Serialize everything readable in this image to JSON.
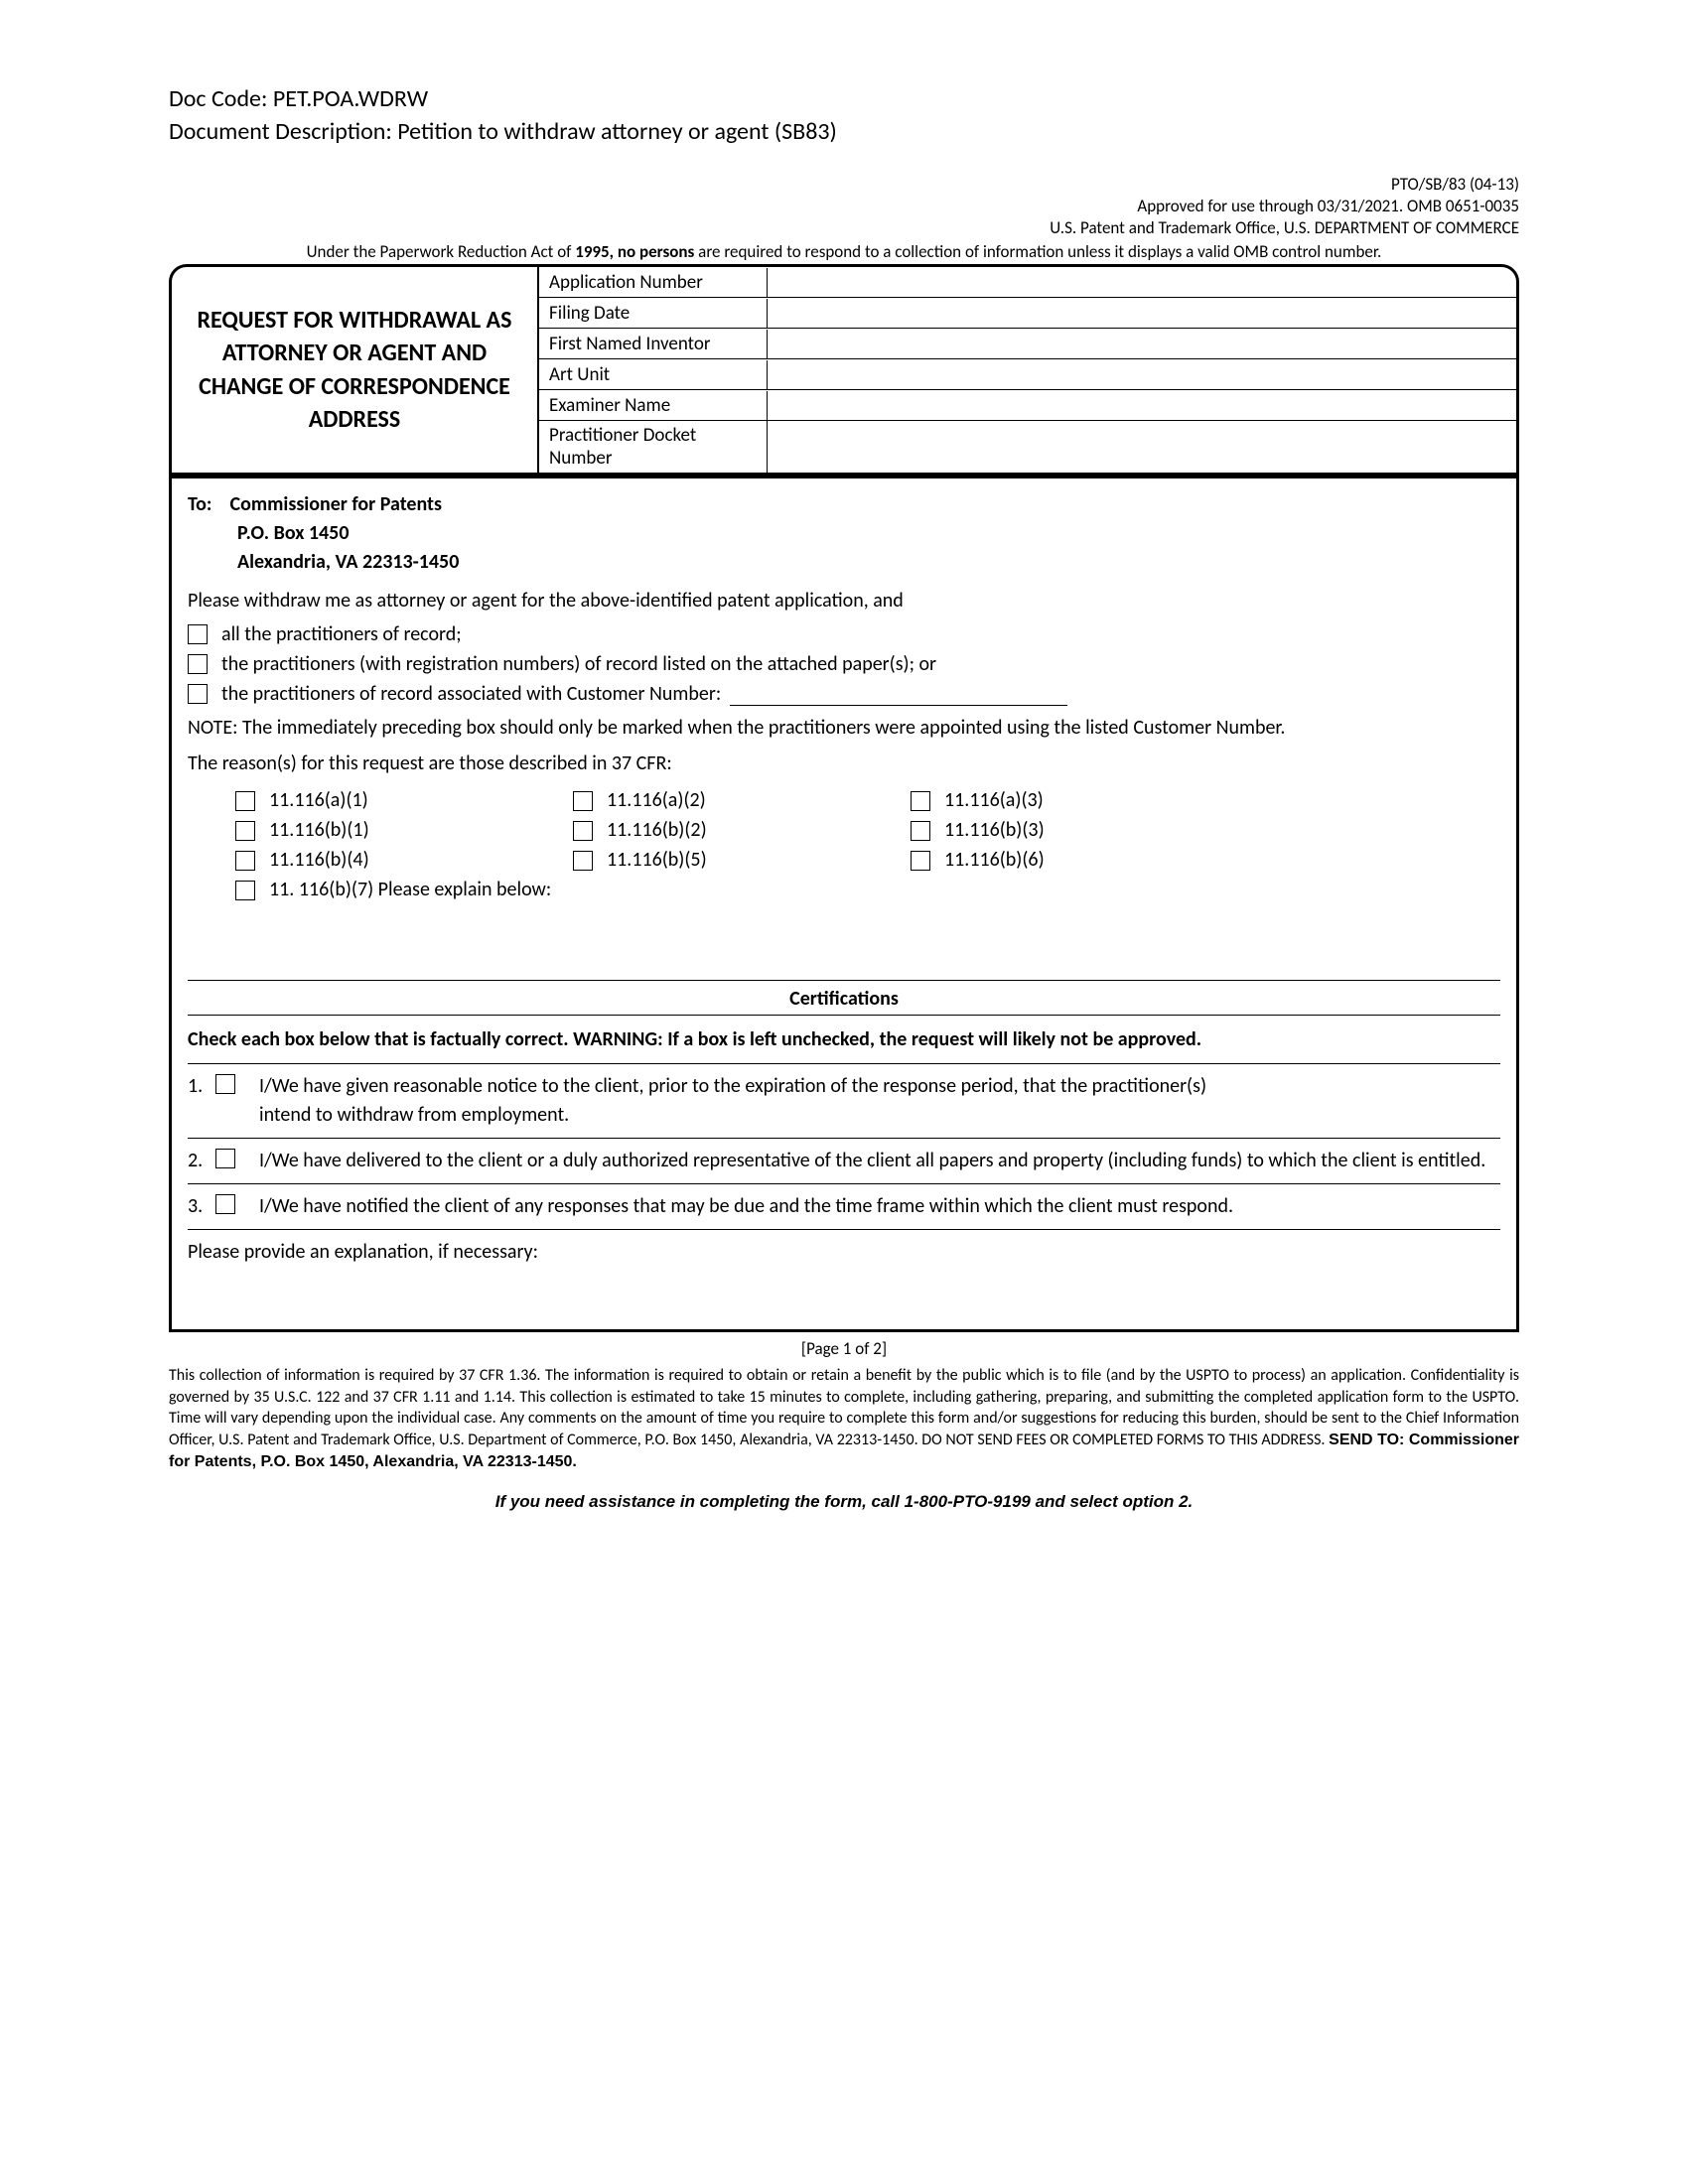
{
  "header": {
    "doc_code_label": "Doc Code:",
    "doc_code": "PET.POA.WDRW",
    "doc_desc_label": "Document Description:",
    "doc_desc": "Petition to withdraw attorney or agent (SB83)",
    "meta1": "PTO/SB/83 (04-13)",
    "meta2": "Approved for use through 03/31/2021. OMB 0651-0035",
    "meta3": "U.S. Patent and Trademark Office, U.S. DEPARTMENT OF COMMERCE",
    "meta4a": "Under the Paperwork Reduction Act of ",
    "meta4b": "1995, no persons",
    "meta4c": " are required to respond to a collection of information unless it displays a valid OMB control number."
  },
  "title": "REQUEST FOR WITHDRAWAL AS ATTORNEY OR AGENT AND CHANGE OF CORRESPONDENCE ADDRESS",
  "fields": {
    "app_num": "Application Number",
    "filing_date": "Filing Date",
    "inventor": "First Named Inventor",
    "art_unit": "Art Unit",
    "examiner": "Examiner Name",
    "docket": "Practitioner Docket Number"
  },
  "to": {
    "label": "To:",
    "line1": "Commissioner for Patents",
    "line2": "P.O. Box 1450",
    "line3": "Alexandria, VA  22313-1450"
  },
  "body": {
    "intro": "Please withdraw me as attorney or agent for the above-identified patent application, and",
    "opt1": "all the practitioners of record;",
    "opt2": "the practitioners (with registration numbers) of record listed on the attached paper(s); or",
    "opt3": "the practitioners of record associated with Customer Number:",
    "note": "NOTE:  The immediately preceding box should only be marked when the practitioners were appointed using the listed Customer Number.",
    "reasons_intro": "The reason(s) for this request are those described in 37 CFR:",
    "r1": "11.116(a)(1)",
    "r2": "11.116(a)(2)",
    "r3": "11.116(a)(3)",
    "r4": "11.116(b)(1)",
    "r5": "11.116(b)(2)",
    "r6": "11.116(b)(3)",
    "r7": "11.116(b)(4)",
    "r8": "11.116(b)(5)",
    "r9": "11.116(b)(6)",
    "r10": "11. 116(b)(7) Please explain below:"
  },
  "cert": {
    "heading": "Certifications",
    "warn": "Check each box below that is factually correct. WARNING:  If a box is left unchecked, the request will likely not be approved.",
    "n1": "1.",
    "c1a": "I/We have given reasonable notice to the client, prior to the expiration of the response period, that the practitioner(s)",
    "c1b": "intend to withdraw from employment.",
    "n2": "2.",
    "c2": "I/We have delivered to the client or a duly authorized representative of the client all papers and property (including funds) to which the client is entitled.",
    "n3": "3.",
    "c3": "I/We have notified the client of any responses that may be due and the time frame within which the client must respond.",
    "explain": "Please provide an explanation, if necessary:"
  },
  "footer": {
    "page": "[Page 1 of 2]",
    "text1": "This collection of information is required by 37 CFR 1.36. The information is required to obtain or retain a benefit by the public which is to file (and by the USPTO to process) an application. Confidentiality is governed by 35 U.S.C. 122 and 37 CFR 1.11 and 1.14. This collection is estimated to take 15 minutes to complete, including gathering, preparing, and submitting the completed application form to the USPTO. Time will vary depending upon the individual case. Any comments on the amount of time you require to complete this form and/or suggestions for reducing this burden, should be sent to the Chief Information Officer, U.S. Patent and Trademark Office, U.S. Department of Commerce, P.O. Box 1450, Alexandria, VA 22313-1450. DO NOT SEND FEES OR COMPLETED FORMS TO THIS ADDRESS. ",
    "text2": "SEND TO: Commissioner for Patents, P.O. Box 1450, Alexandria, VA 22313-1450.",
    "assist": "If you need assistance in completing the form, call 1-800-PTO-9199 and select option 2."
  }
}
